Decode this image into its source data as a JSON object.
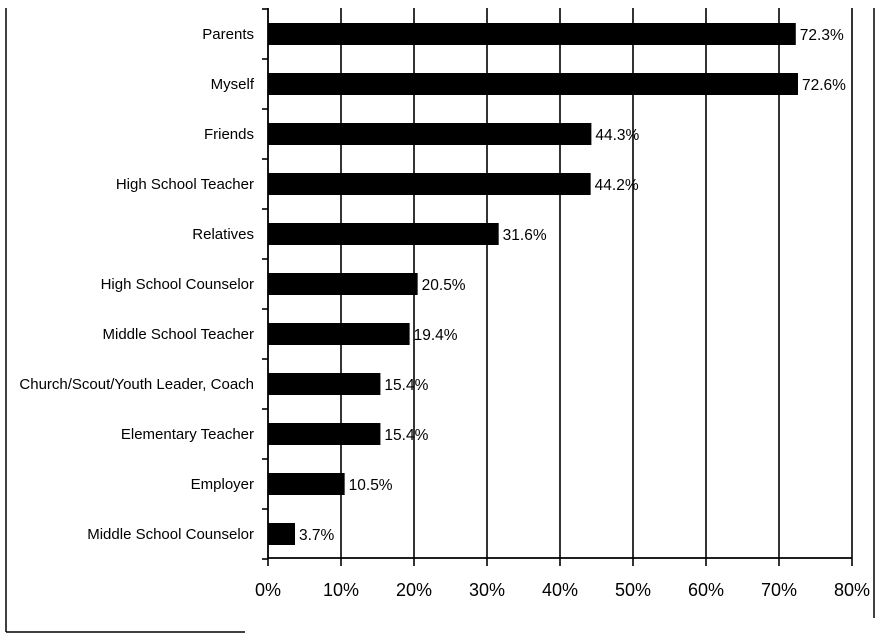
{
  "chart_data": {
    "type": "bar",
    "orientation": "horizontal",
    "categories": [
      "Parents",
      "Myself",
      "Friends",
      "High School Teacher",
      "Relatives",
      "High School Counselor",
      "Middle School Teacher",
      "Church/Scout/Youth Leader, Coach",
      "Elementary Teacher",
      "Employer",
      "Middle School Counselor"
    ],
    "values": [
      72.3,
      72.6,
      44.3,
      44.2,
      31.6,
      20.5,
      19.4,
      15.4,
      15.4,
      10.5,
      3.7
    ],
    "data_labels": [
      "72.3%",
      "72.6%",
      "44.3%",
      "44.2%",
      "31.6%",
      "20.5%",
      "19.4%",
      "15.4%",
      "15.4%",
      "10.5%",
      "3.7%"
    ],
    "x_ticks": [
      "0%",
      "10%",
      "20%",
      "30%",
      "40%",
      "50%",
      "60%",
      "70%",
      "80%"
    ],
    "xlim": [
      0,
      80
    ],
    "title": "",
    "xlabel": "",
    "ylabel": "",
    "grid": "vertical",
    "legend": "none",
    "bar_color": "#000000"
  }
}
